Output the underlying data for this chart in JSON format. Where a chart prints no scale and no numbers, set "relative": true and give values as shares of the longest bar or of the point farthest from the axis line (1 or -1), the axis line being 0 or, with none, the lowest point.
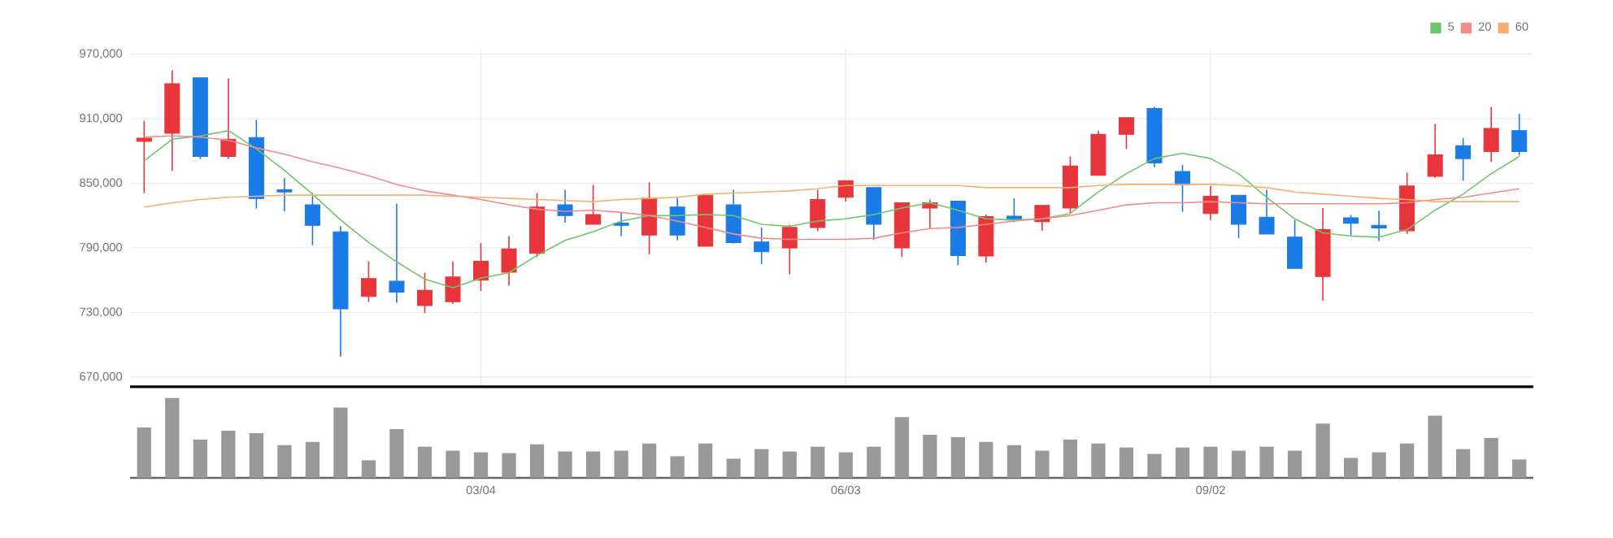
{
  "chart_data": [
    {
      "type": "candlestick",
      "legend": "top right",
      "grid": true,
      "tick_labels": "y",
      "categories": [
        null,
        null,
        null,
        null,
        null,
        null,
        null,
        null,
        null,
        null,
        null,
        null,
        null,
        null,
        null,
        null,
        null,
        null,
        null,
        null,
        null,
        null,
        null,
        null,
        null,
        null,
        null,
        null,
        null,
        null,
        null,
        null,
        null,
        null,
        null,
        null,
        null,
        null,
        null,
        null,
        null,
        null,
        null,
        null,
        null,
        null,
        null,
        null,
        null,
        null
      ],
      "ylim": [
        661000,
        975000
      ],
      "yticks": [
        {
          "value": 670000,
          "label": "670,000"
        },
        {
          "value": 730000,
          "label": "730,000"
        },
        {
          "value": 790000,
          "label": "790,000"
        },
        {
          "value": 850000,
          "label": "850,000"
        },
        {
          "value": 910000,
          "label": "910,000"
        },
        {
          "value": 970000,
          "label": "970,000"
        }
      ],
      "ohlc": [
        [
          889000,
          908000,
          841000,
          892000
        ],
        [
          896500,
          955000,
          861500,
          942500
        ],
        [
          948000,
          948000,
          872500,
          875000
        ],
        [
          875000,
          947500,
          872500,
          891000
        ],
        [
          892500,
          909000,
          826500,
          836000
        ],
        [
          844000,
          855000,
          824000,
          842000
        ],
        [
          830000,
          841000,
          792500,
          811000
        ],
        [
          805000,
          810000,
          689000,
          733500
        ],
        [
          745000,
          777500,
          740000,
          761500
        ],
        [
          759000,
          831000,
          739000,
          749000
        ],
        [
          736500,
          767000,
          729500,
          750500
        ],
        [
          740000,
          777500,
          738000,
          763000
        ],
        [
          760000,
          794500,
          750000,
          777500
        ],
        [
          767500,
          801000,
          755000,
          789000
        ],
        [
          785000,
          841000,
          781500,
          828000
        ],
        [
          830000,
          844000,
          813500,
          820000
        ],
        [
          812000,
          848500,
          812000,
          821000
        ],
        [
          813000,
          823000,
          801000,
          811000
        ],
        [
          802000,
          851000,
          784000,
          836000
        ],
        [
          828000,
          837000,
          797000,
          802000
        ],
        [
          791500,
          839000,
          791500,
          839000
        ],
        [
          830000,
          844000,
          794000,
          795000
        ],
        [
          795500,
          809000,
          775000,
          786500
        ],
        [
          790000,
          811500,
          765500,
          809000
        ],
        [
          809000,
          844000,
          805500,
          835000
        ],
        [
          837000,
          852500,
          833000,
          852500
        ],
        [
          846000,
          846000,
          797500,
          812000
        ],
        [
          790000,
          832000,
          781500,
          832000
        ],
        [
          827000,
          835000,
          808000,
          832000
        ],
        [
          833500,
          833500,
          774000,
          783000
        ],
        [
          782500,
          821000,
          776500,
          819000
        ],
        [
          819500,
          836000,
          814000,
          816000
        ],
        [
          814500,
          829500,
          806000,
          829500
        ],
        [
          827000,
          875000,
          822000,
          866000
        ],
        [
          857500,
          899000,
          857000,
          895500
        ],
        [
          895500,
          911000,
          882000,
          911000
        ],
        [
          919500,
          921000,
          865000,
          869000
        ],
        [
          861000,
          867000,
          823500,
          848500
        ],
        [
          822000,
          847500,
          816000,
          838000
        ],
        [
          839000,
          839000,
          799000,
          812000
        ],
        [
          818500,
          844000,
          803000,
          803000
        ],
        [
          800000,
          816000,
          771000,
          771000
        ],
        [
          763500,
          827000,
          741000,
          807000
        ],
        [
          818000,
          820500,
          801500,
          813000
        ],
        [
          811000,
          824500,
          796500,
          808500
        ],
        [
          806000,
          860000,
          803000,
          847500
        ],
        [
          856500,
          905000,
          855000,
          876500
        ],
        [
          885000,
          892000,
          852500,
          873000
        ],
        [
          879500,
          921000,
          870000,
          901000
        ],
        [
          899000,
          914500,
          876000,
          879500
        ]
      ],
      "colors": [
        "#e8353b",
        "#e8353b",
        "#1b7be6",
        "#e8353b",
        "#1b7be6",
        "#1b7be6",
        "#1b7be6",
        "#1b7be6",
        "#e8353b",
        "#1b7be6",
        "#e8353b",
        "#e8353b",
        "#e8353b",
        "#e8353b",
        "#e8353b",
        "#1b7be6",
        "#e8353b",
        "#1b7be6",
        "#e8353b",
        "#1b7be6",
        "#e8353b",
        "#1b7be6",
        "#1b7be6",
        "#e8353b",
        "#e8353b",
        "#e8353b",
        "#1b7be6",
        "#e8353b",
        "#e8353b",
        "#1b7be6",
        "#e8353b",
        "#1b7be6",
        "#e8353b",
        "#e8353b",
        "#e8353b",
        "#e8353b",
        "#1b7be6",
        "#1b7be6",
        "#e8353b",
        "#1b7be6",
        "#1b7be6",
        "#1b7be6",
        "#e8353b",
        "#1b7be6",
        "#1b7be6",
        "#e8353b",
        "#e8353b",
        "#1b7be6",
        "#e8353b",
        "#1b7be6"
      ],
      "series": [
        {
          "type": "line",
          "name": "5",
          "color": "#6cc66c",
          "values": [
            871000,
            891000,
            894000,
            899000,
            882000,
            862000,
            840000,
            816000,
            795000,
            777000,
            761000,
            753000,
            762000,
            767000,
            783000,
            797000,
            805000,
            815000,
            820000,
            820000,
            821000,
            820000,
            812000,
            810000,
            815000,
            817000,
            821000,
            827000,
            832000,
            825000,
            817000,
            816000,
            817000,
            822000,
            842000,
            859000,
            873000,
            878000,
            873000,
            859000,
            837000,
            817000,
            804000,
            801000,
            800000,
            807000,
            825000,
            840000,
            859000,
            875000
          ]
        },
        {
          "type": "line",
          "name": "20",
          "color": "#f08c8c",
          "values": [
            893000,
            894000,
            893000,
            890000,
            883000,
            877000,
            870000,
            864000,
            857000,
            849000,
            843000,
            839000,
            835000,
            830000,
            826000,
            824000,
            825000,
            823000,
            820000,
            815000,
            809000,
            803000,
            799000,
            798000,
            798000,
            798000,
            799000,
            804000,
            808000,
            809000,
            812000,
            815000,
            817000,
            820000,
            825000,
            830000,
            832000,
            832000,
            833000,
            832000,
            831000,
            831000,
            831000,
            831000,
            831000,
            832000,
            835000,
            837000,
            841000,
            845000
          ]
        },
        {
          "type": "line",
          "name": "60",
          "color": "#f5b070",
          "values": [
            828000,
            832000,
            835000,
            837000,
            838000,
            839000,
            839000,
            839000,
            839000,
            839000,
            839000,
            838000,
            837000,
            836000,
            835000,
            834000,
            833000,
            835000,
            836000,
            837000,
            840000,
            841000,
            842000,
            843000,
            845000,
            848000,
            848000,
            848000,
            848000,
            848000,
            846000,
            846000,
            846000,
            846000,
            848000,
            849000,
            849000,
            849000,
            849000,
            848000,
            846000,
            842000,
            840000,
            838000,
            836000,
            835000,
            833000,
            833000,
            833000,
            833000
          ]
        }
      ]
    },
    {
      "type": "bar",
      "relative": true,
      "color": "#999999",
      "categories": [
        null,
        null,
        null,
        null,
        null,
        null,
        null,
        null,
        null,
        null,
        null,
        null,
        "03/04",
        null,
        null,
        null,
        null,
        null,
        null,
        null,
        null,
        null,
        null,
        null,
        null,
        "06/03",
        null,
        null,
        null,
        null,
        null,
        null,
        null,
        null,
        null,
        null,
        null,
        null,
        "09/02",
        null,
        null,
        null,
        null,
        null,
        null,
        null,
        null,
        null,
        null,
        null
      ],
      "values": [
        0.63,
        1.0,
        0.48,
        0.59,
        0.56,
        0.41,
        0.45,
        0.88,
        0.22,
        0.61,
        0.39,
        0.34,
        0.32,
        0.31,
        0.42,
        0.33,
        0.33,
        0.34,
        0.43,
        0.27,
        0.43,
        0.24,
        0.36,
        0.33,
        0.39,
        0.32,
        0.39,
        0.76,
        0.54,
        0.51,
        0.45,
        0.41,
        0.34,
        0.48,
        0.43,
        0.38,
        0.3,
        0.38,
        0.39,
        0.34,
        0.39,
        0.34,
        0.68,
        0.25,
        0.32,
        0.43,
        0.78,
        0.36,
        0.5,
        0.23
      ]
    }
  ]
}
